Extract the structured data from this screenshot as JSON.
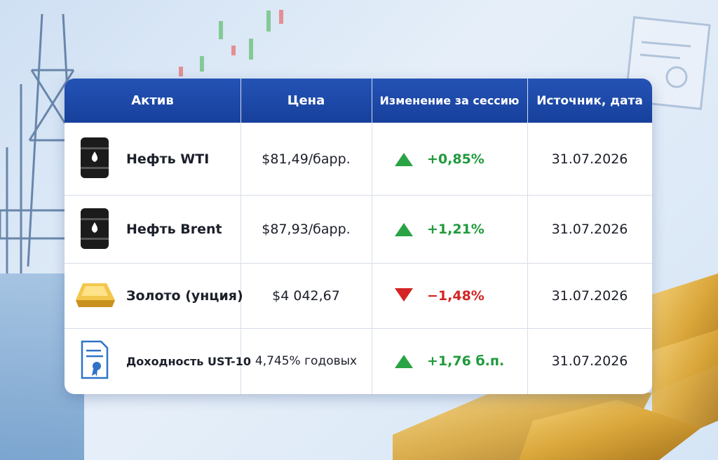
{
  "table": {
    "header": [
      "Актив",
      "Цена",
      "Изменение за сессию",
      "Источник, дата"
    ],
    "rows": [
      [
        "Нефть WTI",
        "$81,49/барр.",
        "+0,85%",
        "31.07.2026"
      ],
      [
        "Нефть Brent",
        "$87,93/барр.",
        "+1,21%",
        "31.07.2026"
      ],
      [
        "Золото (унция)",
        "$4 042,67",
        "−1,48%",
        "31.07.2026"
      ],
      [
        "Доходность UST-10",
        "4,745% годовых",
        "+1,76 б.п.",
        "31.07.2026"
      ]
    ]
  }
}
